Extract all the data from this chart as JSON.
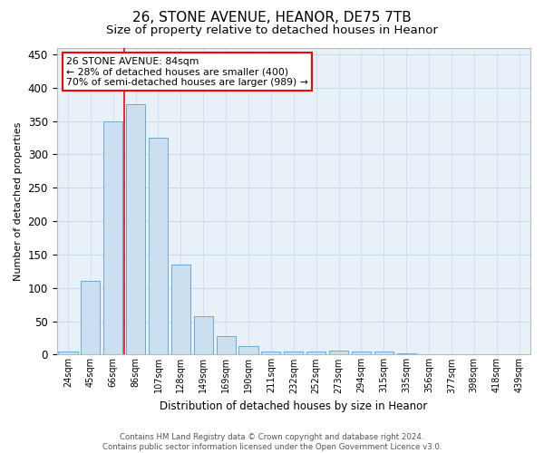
{
  "title1": "26, STONE AVENUE, HEANOR, DE75 7TB",
  "title2": "Size of property relative to detached houses in Heanor",
  "xlabel": "Distribution of detached houses by size in Heanor",
  "ylabel": "Number of detached properties",
  "categories": [
    "24sqm",
    "45sqm",
    "66sqm",
    "86sqm",
    "107sqm",
    "128sqm",
    "149sqm",
    "169sqm",
    "190sqm",
    "211sqm",
    "232sqm",
    "252sqm",
    "273sqm",
    "294sqm",
    "315sqm",
    "335sqm",
    "356sqm",
    "377sqm",
    "398sqm",
    "418sqm",
    "439sqm"
  ],
  "values": [
    4,
    110,
    350,
    375,
    325,
    135,
    57,
    27,
    13,
    5,
    5,
    5,
    6,
    5,
    5,
    2,
    1,
    1,
    1,
    1,
    1
  ],
  "bar_color": "#ccdff0",
  "bar_edge_color": "#6aaad4",
  "grid_color": "#c8d8ea",
  "background_color": "#e8f0f8",
  "annotation_text": "26 STONE AVENUE: 84sqm\n← 28% of detached houses are smaller (400)\n70% of semi-detached houses are larger (989) →",
  "annotation_box_color": "white",
  "annotation_box_edge_color": "red",
  "property_line_color": "red",
  "footer_line1": "Contains HM Land Registry data © Crown copyright and database right 2024.",
  "footer_line2": "Contains public sector information licensed under the Open Government Licence v3.0.",
  "ylim": [
    0,
    460
  ],
  "title1_fontsize": 11,
  "title2_fontsize": 9.5
}
